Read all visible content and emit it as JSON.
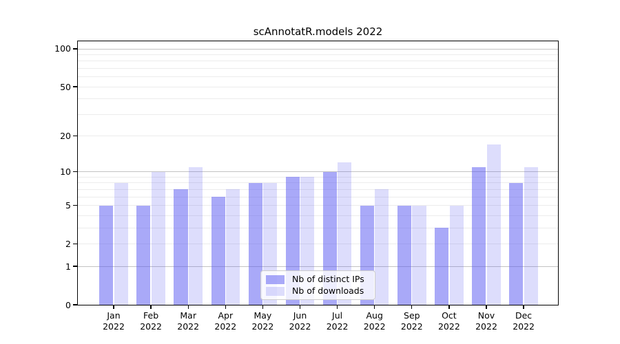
{
  "title": "scAnnotatR.models 2022",
  "colors": {
    "ips_bar": "rgba(84,84,242,0.5)",
    "downloads_bar": "rgba(84,84,242,0.2)",
    "major_grid": "#c3c3c3",
    "minor_grid": "#ececec",
    "axis": "#000000",
    "legend_border": "#cccccc"
  },
  "chart_data": {
    "type": "bar",
    "title": "scAnnotatR.models 2022",
    "categories": [
      "Jan",
      "Feb",
      "Mar",
      "Apr",
      "May",
      "Jun",
      "Jul",
      "Aug",
      "Sep",
      "Oct",
      "Nov",
      "Dec"
    ],
    "category_year": "2022",
    "series": [
      {
        "name": "Nb of distinct IPs",
        "values": [
          5,
          5,
          7,
          6,
          8,
          9,
          10,
          5,
          5,
          3,
          11,
          8
        ]
      },
      {
        "name": "Nb of downloads",
        "values": [
          8,
          10,
          11,
          7,
          8,
          9,
          12,
          7,
          5,
          5,
          17,
          11
        ]
      }
    ],
    "yscale": "log10(value+1)",
    "ylim": [
      0,
      115
    ],
    "yticks": [
      0,
      1,
      2,
      5,
      10,
      20,
      50,
      100
    ],
    "major_gridlines": [
      1,
      10,
      100
    ],
    "minor_gridlines": [
      2,
      3,
      4,
      5,
      6,
      7,
      8,
      9,
      20,
      30,
      40,
      50,
      60,
      70,
      80,
      90
    ],
    "grid": true,
    "legend_position": "lower center",
    "xlabel": "",
    "ylabel": ""
  }
}
